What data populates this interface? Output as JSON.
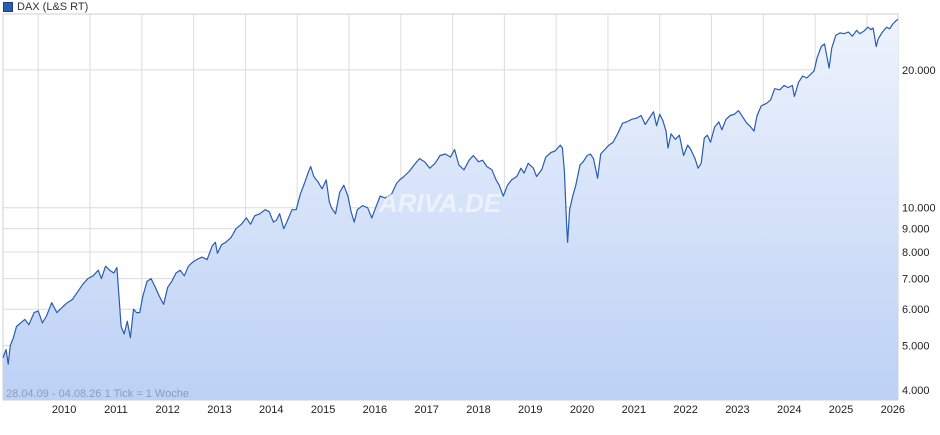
{
  "chart_data": {
    "type": "line",
    "title": "",
    "legend": {
      "label": "DAX (L&S RT)",
      "position": "top-left"
    },
    "line_color": "#2a5db0",
    "fill_color_top": "#eef3fd",
    "fill_color_bottom": "#bcd1f5",
    "y_scale": "log",
    "ylim": [
      3800,
      26500
    ],
    "y_ticks": [
      {
        "value": 4000,
        "label": "4.000"
      },
      {
        "value": 5000,
        "label": "5.000"
      },
      {
        "value": 6000,
        "label": "6.000"
      },
      {
        "value": 7000,
        "label": "7.000"
      },
      {
        "value": 8000,
        "label": "8.000"
      },
      {
        "value": 9000,
        "label": "9.000"
      },
      {
        "value": 10000,
        "label": "10.000"
      },
      {
        "value": 20000,
        "label": "20.000"
      }
    ],
    "xlim": [
      2009.32,
      2026.6
    ],
    "x_ticks": [
      {
        "value": 2010,
        "label": "2010"
      },
      {
        "value": 2011,
        "label": "2011"
      },
      {
        "value": 2012,
        "label": "2012"
      },
      {
        "value": 2013,
        "label": "2013"
      },
      {
        "value": 2014,
        "label": "2014"
      },
      {
        "value": 2015,
        "label": "2015"
      },
      {
        "value": 2016,
        "label": "2016"
      },
      {
        "value": 2017,
        "label": "2017"
      },
      {
        "value": 2018,
        "label": "2018"
      },
      {
        "value": 2019,
        "label": "2019"
      },
      {
        "value": 2020,
        "label": "2020"
      },
      {
        "value": 2021,
        "label": "2021"
      },
      {
        "value": 2022,
        "label": "2022"
      },
      {
        "value": 2023,
        "label": "2023"
      },
      {
        "value": 2024,
        "label": "2024"
      },
      {
        "value": 2025,
        "label": "2025"
      },
      {
        "value": 2026,
        "label": "2026"
      }
    ],
    "grid": true,
    "footnote": "28.04.09 - 04.08.26   1 Tick = 1 Woche",
    "watermark": "ARIVA.DE",
    "series": [
      {
        "name": "DAX (L&S RT)",
        "points": [
          [
            2009.32,
            4700
          ],
          [
            2009.38,
            4900
          ],
          [
            2009.42,
            4550
          ],
          [
            2009.46,
            5000
          ],
          [
            2009.52,
            5200
          ],
          [
            2009.58,
            5500
          ],
          [
            2009.66,
            5600
          ],
          [
            2009.74,
            5700
          ],
          [
            2009.82,
            5550
          ],
          [
            2009.92,
            5900
          ],
          [
            2010.0,
            5950
          ],
          [
            2010.08,
            5600
          ],
          [
            2010.16,
            5800
          ],
          [
            2010.26,
            6200
          ],
          [
            2010.36,
            5900
          ],
          [
            2010.46,
            6050
          ],
          [
            2010.56,
            6200
          ],
          [
            2010.66,
            6300
          ],
          [
            2010.76,
            6550
          ],
          [
            2010.86,
            6800
          ],
          [
            2010.96,
            7000
          ],
          [
            2011.06,
            7100
          ],
          [
            2011.16,
            7300
          ],
          [
            2011.22,
            7000
          ],
          [
            2011.3,
            7450
          ],
          [
            2011.38,
            7300
          ],
          [
            2011.46,
            7200
          ],
          [
            2011.52,
            7400
          ],
          [
            2011.56,
            6400
          ],
          [
            2011.6,
            5500
          ],
          [
            2011.66,
            5300
          ],
          [
            2011.72,
            5650
          ],
          [
            2011.78,
            5200
          ],
          [
            2011.84,
            6000
          ],
          [
            2011.9,
            5900
          ],
          [
            2011.96,
            5900
          ],
          [
            2012.02,
            6400
          ],
          [
            2012.1,
            6900
          ],
          [
            2012.18,
            7000
          ],
          [
            2012.26,
            6700
          ],
          [
            2012.34,
            6400
          ],
          [
            2012.42,
            6150
          ],
          [
            2012.5,
            6700
          ],
          [
            2012.58,
            6900
          ],
          [
            2012.66,
            7200
          ],
          [
            2012.74,
            7300
          ],
          [
            2012.82,
            7100
          ],
          [
            2012.9,
            7450
          ],
          [
            2012.98,
            7600
          ],
          [
            2013.06,
            7700
          ],
          [
            2013.16,
            7800
          ],
          [
            2013.26,
            7700
          ],
          [
            2013.36,
            8250
          ],
          [
            2013.42,
            8400
          ],
          [
            2013.46,
            7950
          ],
          [
            2013.54,
            8300
          ],
          [
            2013.62,
            8400
          ],
          [
            2013.72,
            8600
          ],
          [
            2013.82,
            9000
          ],
          [
            2013.92,
            9200
          ],
          [
            2014.02,
            9500
          ],
          [
            2014.1,
            9200
          ],
          [
            2014.18,
            9600
          ],
          [
            2014.28,
            9700
          ],
          [
            2014.38,
            9900
          ],
          [
            2014.46,
            9800
          ],
          [
            2014.54,
            9300
          ],
          [
            2014.6,
            9400
          ],
          [
            2014.66,
            9700
          ],
          [
            2014.74,
            9000
          ],
          [
            2014.8,
            9300
          ],
          [
            2014.9,
            9900
          ],
          [
            2014.98,
            9900
          ],
          [
            2015.06,
            10700
          ],
          [
            2015.14,
            11300
          ],
          [
            2015.22,
            12000
          ],
          [
            2015.26,
            12300
          ],
          [
            2015.32,
            11700
          ],
          [
            2015.4,
            11400
          ],
          [
            2015.48,
            11000
          ],
          [
            2015.56,
            11500
          ],
          [
            2015.62,
            10300
          ],
          [
            2015.66,
            10000
          ],
          [
            2015.74,
            9700
          ],
          [
            2015.82,
            10800
          ],
          [
            2015.9,
            11200
          ],
          [
            2015.98,
            10600
          ],
          [
            2016.04,
            9800
          ],
          [
            2016.1,
            9300
          ],
          [
            2016.16,
            9900
          ],
          [
            2016.26,
            10100
          ],
          [
            2016.36,
            10000
          ],
          [
            2016.44,
            9500
          ],
          [
            2016.5,
            9900
          ],
          [
            2016.6,
            10600
          ],
          [
            2016.7,
            10500
          ],
          [
            2016.82,
            10700
          ],
          [
            2016.92,
            11300
          ],
          [
            2016.98,
            11500
          ],
          [
            2017.06,
            11700
          ],
          [
            2017.16,
            12000
          ],
          [
            2017.26,
            12400
          ],
          [
            2017.36,
            12800
          ],
          [
            2017.46,
            12600
          ],
          [
            2017.56,
            12200
          ],
          [
            2017.66,
            12500
          ],
          [
            2017.76,
            13000
          ],
          [
            2017.86,
            13100
          ],
          [
            2017.96,
            12900
          ],
          [
            2018.04,
            13400
          ],
          [
            2018.12,
            12400
          ],
          [
            2018.22,
            12100
          ],
          [
            2018.32,
            12700
          ],
          [
            2018.4,
            13000
          ],
          [
            2018.5,
            12600
          ],
          [
            2018.58,
            12700
          ],
          [
            2018.66,
            12300
          ],
          [
            2018.76,
            12100
          ],
          [
            2018.84,
            11500
          ],
          [
            2018.9,
            11200
          ],
          [
            2018.98,
            10600
          ],
          [
            2019.06,
            11200
          ],
          [
            2019.14,
            11500
          ],
          [
            2019.24,
            11700
          ],
          [
            2019.32,
            12200
          ],
          [
            2019.38,
            11900
          ],
          [
            2019.46,
            12500
          ],
          [
            2019.56,
            12200
          ],
          [
            2019.62,
            11700
          ],
          [
            2019.72,
            12100
          ],
          [
            2019.8,
            12900
          ],
          [
            2019.9,
            13200
          ],
          [
            2019.98,
            13300
          ],
          [
            2020.08,
            13700
          ],
          [
            2020.12,
            13500
          ],
          [
            2020.16,
            12000
          ],
          [
            2020.2,
            9300
          ],
          [
            2020.22,
            8400
          ],
          [
            2020.26,
            9900
          ],
          [
            2020.32,
            10600
          ],
          [
            2020.38,
            11200
          ],
          [
            2020.46,
            12400
          ],
          [
            2020.52,
            12600
          ],
          [
            2020.6,
            13000
          ],
          [
            2020.66,
            13100
          ],
          [
            2020.72,
            12800
          ],
          [
            2020.8,
            11600
          ],
          [
            2020.86,
            13100
          ],
          [
            2020.94,
            13400
          ],
          [
            2021.02,
            13700
          ],
          [
            2021.1,
            13900
          ],
          [
            2021.2,
            14600
          ],
          [
            2021.28,
            15300
          ],
          [
            2021.36,
            15400
          ],
          [
            2021.46,
            15600
          ],
          [
            2021.56,
            15700
          ],
          [
            2021.64,
            15900
          ],
          [
            2021.72,
            15200
          ],
          [
            2021.8,
            15700
          ],
          [
            2021.88,
            16200
          ],
          [
            2021.94,
            15100
          ],
          [
            2022.0,
            16000
          ],
          [
            2022.06,
            15500
          ],
          [
            2022.12,
            14700
          ],
          [
            2022.16,
            13500
          ],
          [
            2022.22,
            14500
          ],
          [
            2022.3,
            14100
          ],
          [
            2022.38,
            14400
          ],
          [
            2022.46,
            13000
          ],
          [
            2022.54,
            13700
          ],
          [
            2022.6,
            13400
          ],
          [
            2022.68,
            12800
          ],
          [
            2022.74,
            12200
          ],
          [
            2022.8,
            12500
          ],
          [
            2022.86,
            14200
          ],
          [
            2022.92,
            14400
          ],
          [
            2022.98,
            13900
          ],
          [
            2023.06,
            15000
          ],
          [
            2023.14,
            15400
          ],
          [
            2023.2,
            14800
          ],
          [
            2023.28,
            15600
          ],
          [
            2023.36,
            15900
          ],
          [
            2023.44,
            16000
          ],
          [
            2023.52,
            16300
          ],
          [
            2023.6,
            15800
          ],
          [
            2023.68,
            15300
          ],
          [
            2023.76,
            15000
          ],
          [
            2023.82,
            14700
          ],
          [
            2023.88,
            15900
          ],
          [
            2023.96,
            16700
          ],
          [
            2024.06,
            16900
          ],
          [
            2024.14,
            17200
          ],
          [
            2024.22,
            18200
          ],
          [
            2024.32,
            18100
          ],
          [
            2024.4,
            18500
          ],
          [
            2024.48,
            18300
          ],
          [
            2024.56,
            18500
          ],
          [
            2024.6,
            17500
          ],
          [
            2024.68,
            18800
          ],
          [
            2024.76,
            19400
          ],
          [
            2024.84,
            19200
          ],
          [
            2024.92,
            19600
          ],
          [
            2024.98,
            19900
          ],
          [
            2025.04,
            21300
          ],
          [
            2025.12,
            22500
          ],
          [
            2025.18,
            22800
          ],
          [
            2025.24,
            21000
          ],
          [
            2025.27,
            20200
          ],
          [
            2025.32,
            22300
          ],
          [
            2025.4,
            23800
          ],
          [
            2025.48,
            24100
          ],
          [
            2025.56,
            24000
          ],
          [
            2025.64,
            24200
          ],
          [
            2025.72,
            23700
          ],
          [
            2025.8,
            24400
          ],
          [
            2025.86,
            24000
          ],
          [
            2025.94,
            24300
          ],
          [
            2026.02,
            24800
          ],
          [
            2026.08,
            24500
          ],
          [
            2026.12,
            24700
          ],
          [
            2026.18,
            22500
          ],
          [
            2026.22,
            23400
          ],
          [
            2026.3,
            24200
          ],
          [
            2026.38,
            24800
          ],
          [
            2026.44,
            24600
          ],
          [
            2026.5,
            25200
          ],
          [
            2026.56,
            25600
          ],
          [
            2026.6,
            25800
          ]
        ]
      }
    ]
  }
}
